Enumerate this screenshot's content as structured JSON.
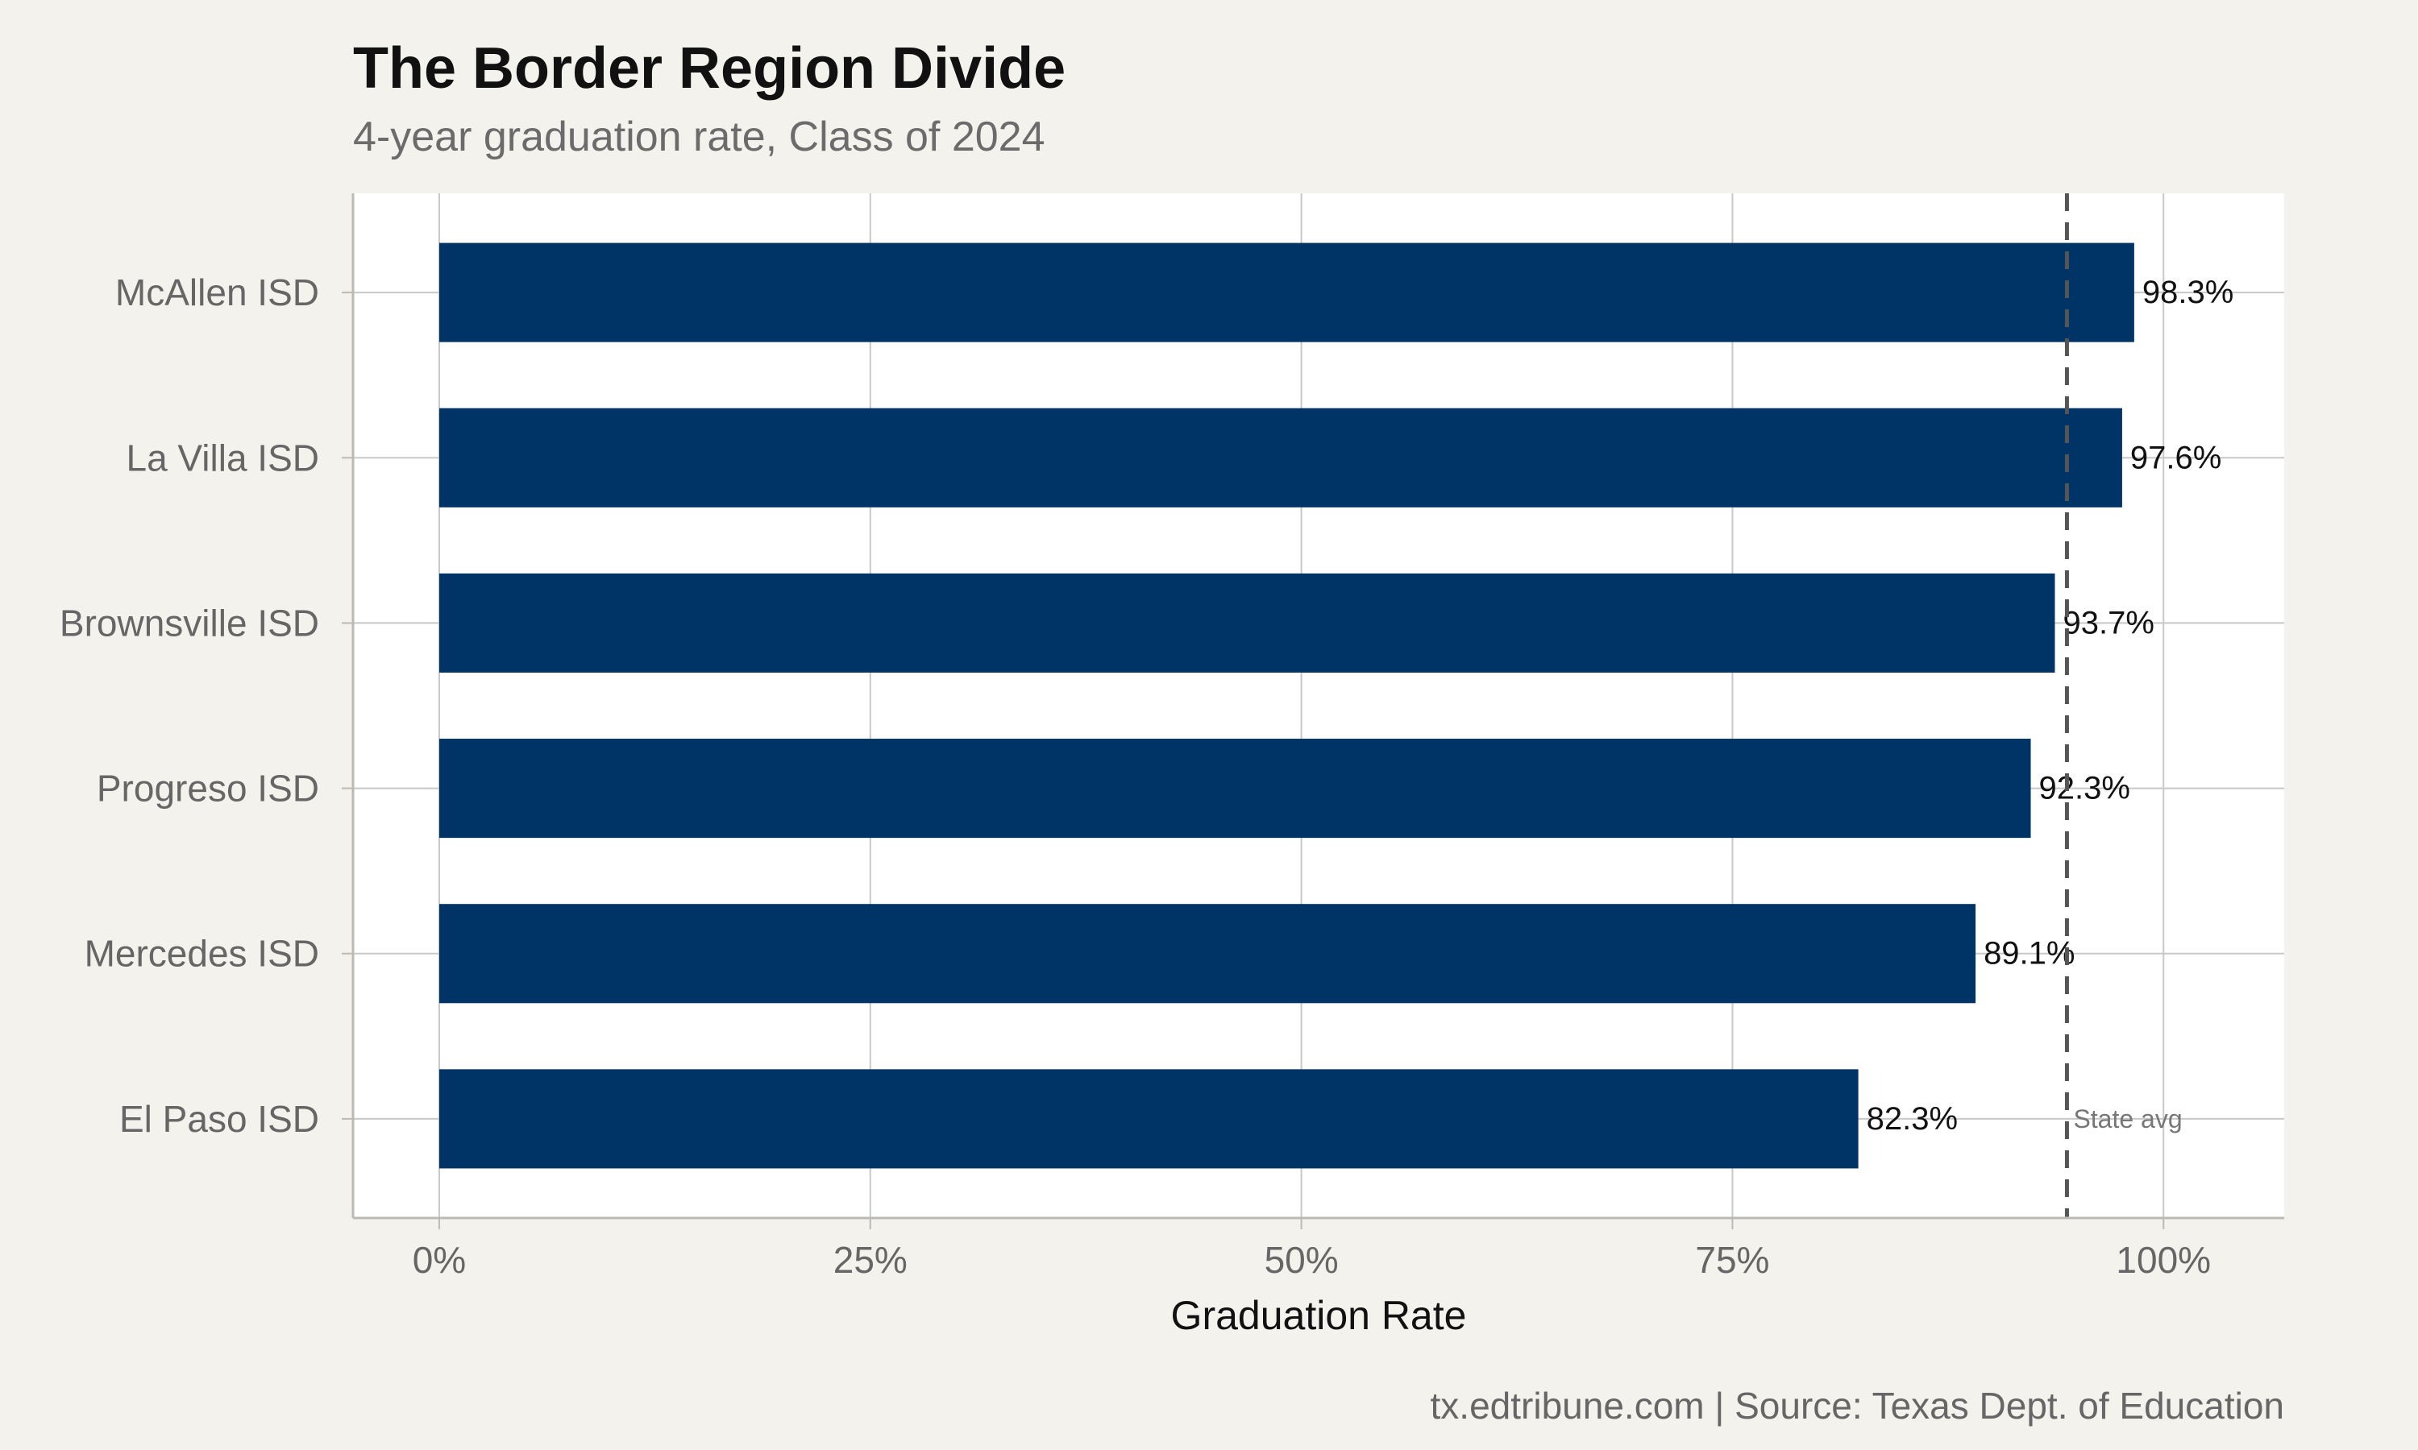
{
  "chart_data": {
    "type": "bar",
    "orientation": "horizontal",
    "title": "The Border Region Divide",
    "subtitle": "4-year graduation rate, Class of 2024",
    "caption": "tx.edtribune.com | Source: Texas Dept. of Education",
    "xlabel": "Graduation Rate",
    "ylabel": "",
    "xlim": [
      -5,
      107
    ],
    "x_ticks": [
      0,
      25,
      50,
      75,
      100
    ],
    "x_tick_labels": [
      "0%",
      "25%",
      "50%",
      "75%",
      "100%"
    ],
    "grid": true,
    "categories": [
      "McAllen ISD",
      "La Villa ISD",
      "Brownsville ISD",
      "Progreso ISD",
      "Mercedes ISD",
      "El Paso ISD"
    ],
    "values": [
      98.3,
      97.6,
      93.7,
      92.3,
      89.1,
      82.3
    ],
    "value_labels": [
      "98.3%",
      "97.6%",
      "93.7%",
      "92.3%",
      "89.1%",
      "82.3%"
    ],
    "reference_line": {
      "value": 94.4,
      "label": "State avg",
      "style": "dashed"
    },
    "colors": {
      "bar": "#003366",
      "background": "#f4f2ed",
      "panel": "#ffffff",
      "grid": "#c8c8c8",
      "reference": "#555555"
    }
  }
}
